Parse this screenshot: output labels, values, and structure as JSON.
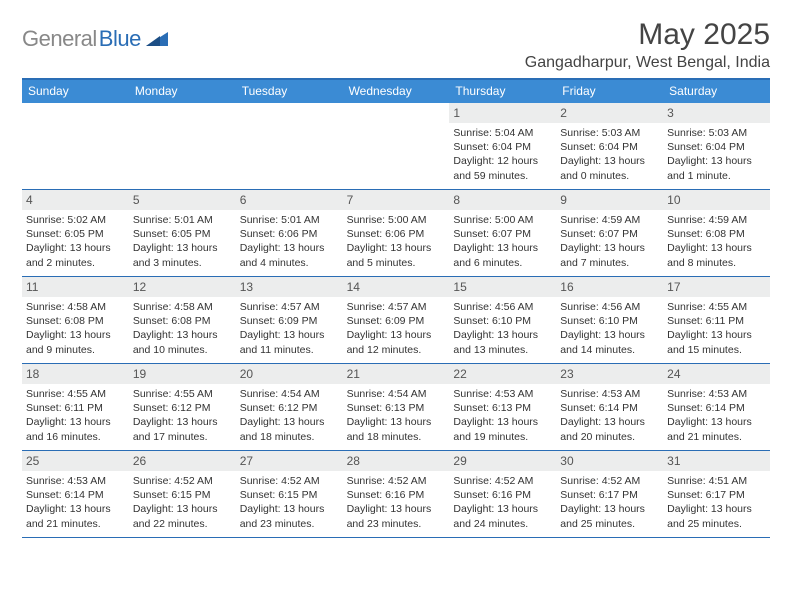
{
  "brand": {
    "text_gray": "General",
    "text_blue": "Blue"
  },
  "header": {
    "month_title": "May 2025",
    "location": "Gangadharpur, West Bengal, India"
  },
  "colors": {
    "header_bar": "#3b8bd4",
    "border": "#2a6db5",
    "daynum_bg": "#eceded",
    "logo_gray": "#888888",
    "logo_blue": "#2a6db5"
  },
  "weekdays": [
    "Sunday",
    "Monday",
    "Tuesday",
    "Wednesday",
    "Thursday",
    "Friday",
    "Saturday"
  ],
  "weeks": [
    [
      null,
      null,
      null,
      null,
      {
        "n": "1",
        "sr": "Sunrise: 5:04 AM",
        "ss": "Sunset: 6:04 PM",
        "d1": "Daylight: 12 hours",
        "d2": "and 59 minutes."
      },
      {
        "n": "2",
        "sr": "Sunrise: 5:03 AM",
        "ss": "Sunset: 6:04 PM",
        "d1": "Daylight: 13 hours",
        "d2": "and 0 minutes."
      },
      {
        "n": "3",
        "sr": "Sunrise: 5:03 AM",
        "ss": "Sunset: 6:04 PM",
        "d1": "Daylight: 13 hours",
        "d2": "and 1 minute."
      }
    ],
    [
      {
        "n": "4",
        "sr": "Sunrise: 5:02 AM",
        "ss": "Sunset: 6:05 PM",
        "d1": "Daylight: 13 hours",
        "d2": "and 2 minutes."
      },
      {
        "n": "5",
        "sr": "Sunrise: 5:01 AM",
        "ss": "Sunset: 6:05 PM",
        "d1": "Daylight: 13 hours",
        "d2": "and 3 minutes."
      },
      {
        "n": "6",
        "sr": "Sunrise: 5:01 AM",
        "ss": "Sunset: 6:06 PM",
        "d1": "Daylight: 13 hours",
        "d2": "and 4 minutes."
      },
      {
        "n": "7",
        "sr": "Sunrise: 5:00 AM",
        "ss": "Sunset: 6:06 PM",
        "d1": "Daylight: 13 hours",
        "d2": "and 5 minutes."
      },
      {
        "n": "8",
        "sr": "Sunrise: 5:00 AM",
        "ss": "Sunset: 6:07 PM",
        "d1": "Daylight: 13 hours",
        "d2": "and 6 minutes."
      },
      {
        "n": "9",
        "sr": "Sunrise: 4:59 AM",
        "ss": "Sunset: 6:07 PM",
        "d1": "Daylight: 13 hours",
        "d2": "and 7 minutes."
      },
      {
        "n": "10",
        "sr": "Sunrise: 4:59 AM",
        "ss": "Sunset: 6:08 PM",
        "d1": "Daylight: 13 hours",
        "d2": "and 8 minutes."
      }
    ],
    [
      {
        "n": "11",
        "sr": "Sunrise: 4:58 AM",
        "ss": "Sunset: 6:08 PM",
        "d1": "Daylight: 13 hours",
        "d2": "and 9 minutes."
      },
      {
        "n": "12",
        "sr": "Sunrise: 4:58 AM",
        "ss": "Sunset: 6:08 PM",
        "d1": "Daylight: 13 hours",
        "d2": "and 10 minutes."
      },
      {
        "n": "13",
        "sr": "Sunrise: 4:57 AM",
        "ss": "Sunset: 6:09 PM",
        "d1": "Daylight: 13 hours",
        "d2": "and 11 minutes."
      },
      {
        "n": "14",
        "sr": "Sunrise: 4:57 AM",
        "ss": "Sunset: 6:09 PM",
        "d1": "Daylight: 13 hours",
        "d2": "and 12 minutes."
      },
      {
        "n": "15",
        "sr": "Sunrise: 4:56 AM",
        "ss": "Sunset: 6:10 PM",
        "d1": "Daylight: 13 hours",
        "d2": "and 13 minutes."
      },
      {
        "n": "16",
        "sr": "Sunrise: 4:56 AM",
        "ss": "Sunset: 6:10 PM",
        "d1": "Daylight: 13 hours",
        "d2": "and 14 minutes."
      },
      {
        "n": "17",
        "sr": "Sunrise: 4:55 AM",
        "ss": "Sunset: 6:11 PM",
        "d1": "Daylight: 13 hours",
        "d2": "and 15 minutes."
      }
    ],
    [
      {
        "n": "18",
        "sr": "Sunrise: 4:55 AM",
        "ss": "Sunset: 6:11 PM",
        "d1": "Daylight: 13 hours",
        "d2": "and 16 minutes."
      },
      {
        "n": "19",
        "sr": "Sunrise: 4:55 AM",
        "ss": "Sunset: 6:12 PM",
        "d1": "Daylight: 13 hours",
        "d2": "and 17 minutes."
      },
      {
        "n": "20",
        "sr": "Sunrise: 4:54 AM",
        "ss": "Sunset: 6:12 PM",
        "d1": "Daylight: 13 hours",
        "d2": "and 18 minutes."
      },
      {
        "n": "21",
        "sr": "Sunrise: 4:54 AM",
        "ss": "Sunset: 6:13 PM",
        "d1": "Daylight: 13 hours",
        "d2": "and 18 minutes."
      },
      {
        "n": "22",
        "sr": "Sunrise: 4:53 AM",
        "ss": "Sunset: 6:13 PM",
        "d1": "Daylight: 13 hours",
        "d2": "and 19 minutes."
      },
      {
        "n": "23",
        "sr": "Sunrise: 4:53 AM",
        "ss": "Sunset: 6:14 PM",
        "d1": "Daylight: 13 hours",
        "d2": "and 20 minutes."
      },
      {
        "n": "24",
        "sr": "Sunrise: 4:53 AM",
        "ss": "Sunset: 6:14 PM",
        "d1": "Daylight: 13 hours",
        "d2": "and 21 minutes."
      }
    ],
    [
      {
        "n": "25",
        "sr": "Sunrise: 4:53 AM",
        "ss": "Sunset: 6:14 PM",
        "d1": "Daylight: 13 hours",
        "d2": "and 21 minutes."
      },
      {
        "n": "26",
        "sr": "Sunrise: 4:52 AM",
        "ss": "Sunset: 6:15 PM",
        "d1": "Daylight: 13 hours",
        "d2": "and 22 minutes."
      },
      {
        "n": "27",
        "sr": "Sunrise: 4:52 AM",
        "ss": "Sunset: 6:15 PM",
        "d1": "Daylight: 13 hours",
        "d2": "and 23 minutes."
      },
      {
        "n": "28",
        "sr": "Sunrise: 4:52 AM",
        "ss": "Sunset: 6:16 PM",
        "d1": "Daylight: 13 hours",
        "d2": "and 23 minutes."
      },
      {
        "n": "29",
        "sr": "Sunrise: 4:52 AM",
        "ss": "Sunset: 6:16 PM",
        "d1": "Daylight: 13 hours",
        "d2": "and 24 minutes."
      },
      {
        "n": "30",
        "sr": "Sunrise: 4:52 AM",
        "ss": "Sunset: 6:17 PM",
        "d1": "Daylight: 13 hours",
        "d2": "and 25 minutes."
      },
      {
        "n": "31",
        "sr": "Sunrise: 4:51 AM",
        "ss": "Sunset: 6:17 PM",
        "d1": "Daylight: 13 hours",
        "d2": "and 25 minutes."
      }
    ]
  ]
}
